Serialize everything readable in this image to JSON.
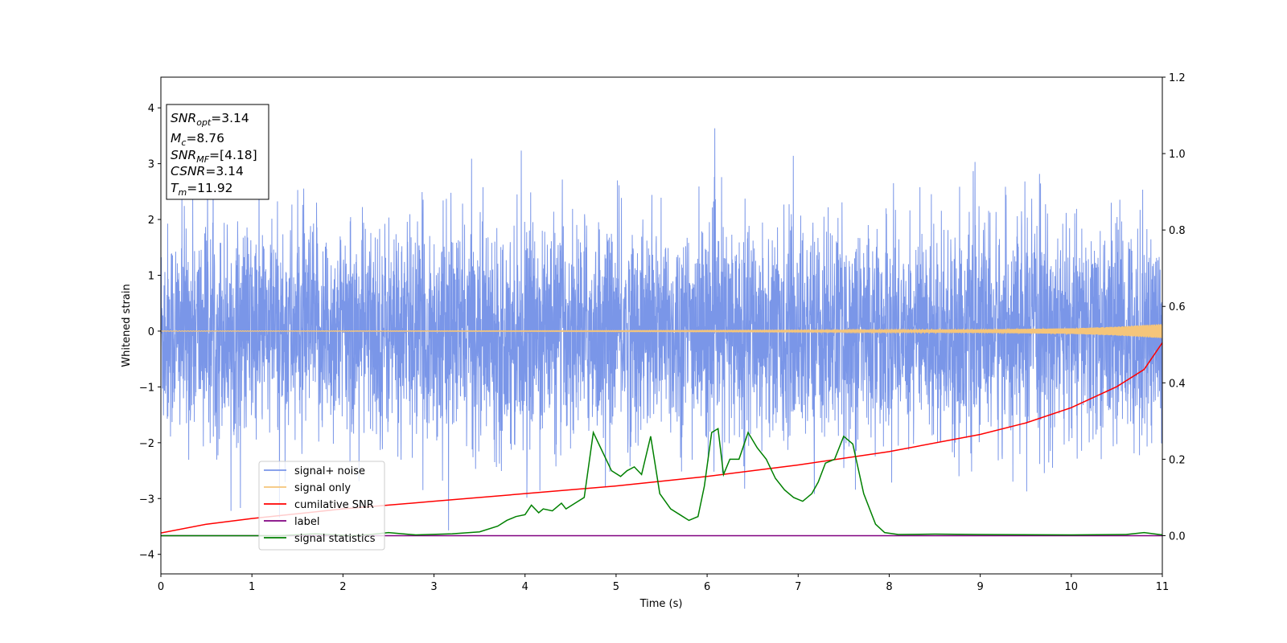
{
  "chart_data": {
    "type": "line",
    "xlabel": "Time (s)",
    "ylabel": "Whitened strain",
    "xlim": [
      0,
      11
    ],
    "ylim_left": [
      -4.35,
      4.55
    ],
    "ylim_right": [
      -0.1,
      1.2
    ],
    "x_ticks": [
      0,
      1,
      2,
      3,
      4,
      5,
      6,
      7,
      8,
      9,
      10,
      11
    ],
    "y_ticks_left": [
      -4,
      -3,
      -2,
      -1,
      0,
      1,
      2,
      3,
      4
    ],
    "y_ticks_left_labels": [
      "−4",
      "−3",
      "−2",
      "−1",
      "0",
      "1",
      "2",
      "3",
      "4"
    ],
    "y_ticks_right": [
      0.0,
      0.2,
      0.4,
      0.6,
      0.8,
      1.0,
      1.2
    ],
    "y_ticks_right_labels": [
      "0.0",
      "0.2",
      "0.4",
      "0.6",
      "0.8",
      "1.0",
      "1.2"
    ],
    "legend_position": "lower-left",
    "info_box": {
      "snr_opt": {
        "sym": "SNR",
        "sub": "opt",
        "val": "=3.14"
      },
      "mc": {
        "sym": "M",
        "sub": "c",
        "val": "=8.76"
      },
      "snr_mf": {
        "sym": "SNR",
        "sub": "MF",
        "val": "=[4.18]"
      },
      "csnr": {
        "sym": "CSNR",
        "val": "=3.14"
      },
      "tm": {
        "sym": "T",
        "sub": "m",
        "val": "=11.92"
      }
    },
    "series": [
      {
        "name": "signal+ noise",
        "axis": "left",
        "color": "#7a96e8",
        "note": "whitened noise, amplitude about ±2.5 with spikes up to ±4.2"
      },
      {
        "name": "signal only",
        "axis": "left",
        "color": "#f5c57a",
        "x": [
          0,
          2,
          4,
          6,
          8,
          9,
          10,
          10.5,
          11
        ],
        "envelope": [
          0.004,
          0.006,
          0.008,
          0.012,
          0.02,
          0.03,
          0.05,
          0.08,
          0.13
        ]
      },
      {
        "name": "cumilative SNR",
        "axis": "right",
        "color": "#ff0000",
        "x": [
          0,
          0.5,
          1,
          2,
          3,
          4,
          5,
          6,
          7,
          8,
          9,
          9.5,
          10,
          10.5,
          10.8,
          11
        ],
        "values": [
          0.007,
          0.03,
          0.045,
          0.07,
          0.09,
          0.11,
          0.13,
          0.155,
          0.185,
          0.22,
          0.265,
          0.295,
          0.335,
          0.39,
          0.435,
          0.505
        ]
      },
      {
        "name": "label",
        "axis": "right",
        "color": "#800080",
        "x": [
          0,
          11
        ],
        "values": [
          0,
          0
        ]
      },
      {
        "name": "signal statistics",
        "axis": "right",
        "color": "#008000",
        "x": [
          0,
          1.3,
          1.7,
          2.1,
          2.3,
          2.5,
          2.8,
          3.2,
          3.5,
          3.7,
          3.8,
          3.9,
          4.0,
          4.07,
          4.15,
          4.2,
          4.3,
          4.4,
          4.45,
          4.55,
          4.65,
          4.75,
          4.85,
          4.95,
          5.05,
          5.12,
          5.2,
          5.28,
          5.38,
          5.48,
          5.6,
          5.7,
          5.8,
          5.9,
          5.97,
          6.05,
          6.12,
          6.18,
          6.25,
          6.35,
          6.45,
          6.55,
          6.65,
          6.75,
          6.85,
          6.95,
          7.05,
          7.15,
          7.22,
          7.3,
          7.4,
          7.5,
          7.6,
          7.72,
          7.85,
          7.95,
          8.1,
          8.5,
          9.0,
          10.0,
          10.6,
          10.8,
          11.0
        ],
        "values": [
          0.0,
          0.0,
          0.005,
          0.0,
          0.003,
          0.008,
          0.002,
          0.005,
          0.01,
          0.025,
          0.04,
          0.05,
          0.055,
          0.08,
          0.06,
          0.07,
          0.065,
          0.085,
          0.07,
          0.085,
          0.1,
          0.27,
          0.22,
          0.17,
          0.155,
          0.17,
          0.18,
          0.16,
          0.26,
          0.11,
          0.07,
          0.055,
          0.04,
          0.05,
          0.13,
          0.27,
          0.28,
          0.16,
          0.2,
          0.2,
          0.27,
          0.23,
          0.2,
          0.15,
          0.12,
          0.1,
          0.09,
          0.11,
          0.14,
          0.19,
          0.2,
          0.26,
          0.24,
          0.11,
          0.03,
          0.008,
          0.003,
          0.004,
          0.003,
          0.002,
          0.003,
          0.008,
          0.002
        ]
      }
    ]
  }
}
